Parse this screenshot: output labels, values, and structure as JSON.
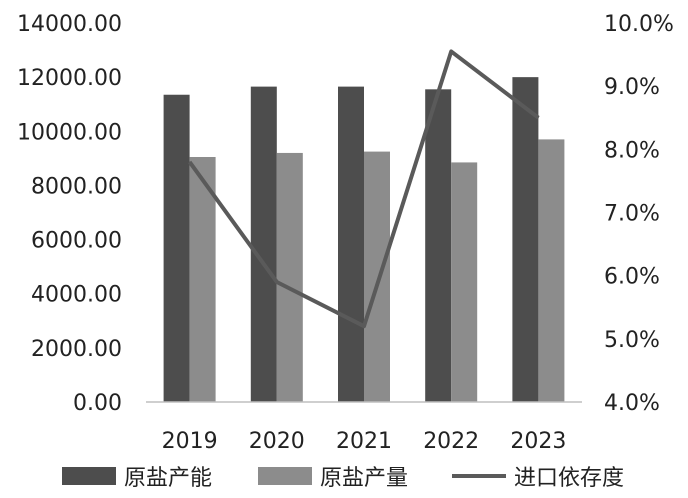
{
  "chart_data": {
    "type": "bar",
    "categories": [
      "2019",
      "2020",
      "2021",
      "2022",
      "2023"
    ],
    "series": [
      {
        "name": "原盐产能",
        "type": "bar",
        "axis": "left",
        "color": "#4d4d4d",
        "values": [
          11350,
          11650,
          11650,
          11550,
          12000
        ]
      },
      {
        "name": "原盐产量",
        "type": "bar",
        "axis": "left",
        "color": "#8c8c8c",
        "values": [
          9050,
          9200,
          9250,
          8850,
          9700
        ]
      },
      {
        "name": "进口依存度",
        "type": "line",
        "axis": "right",
        "color": "#5a5a5a",
        "values": [
          7.8,
          5.9,
          5.2,
          9.55,
          8.5
        ]
      }
    ],
    "y_left": {
      "min": 0,
      "max": 14000,
      "ticks": [
        "0.00",
        "2000.00",
        "4000.00",
        "6000.00",
        "8000.00",
        "10000.00",
        "12000.00",
        "14000.00"
      ]
    },
    "y_right": {
      "min": 4,
      "max": 10,
      "unit": "%",
      "ticks": [
        "4.0%",
        "5.0%",
        "6.0%",
        "7.0%",
        "8.0%",
        "9.0%",
        "10.0%"
      ]
    },
    "grid": false,
    "legend_position": "bottom"
  }
}
